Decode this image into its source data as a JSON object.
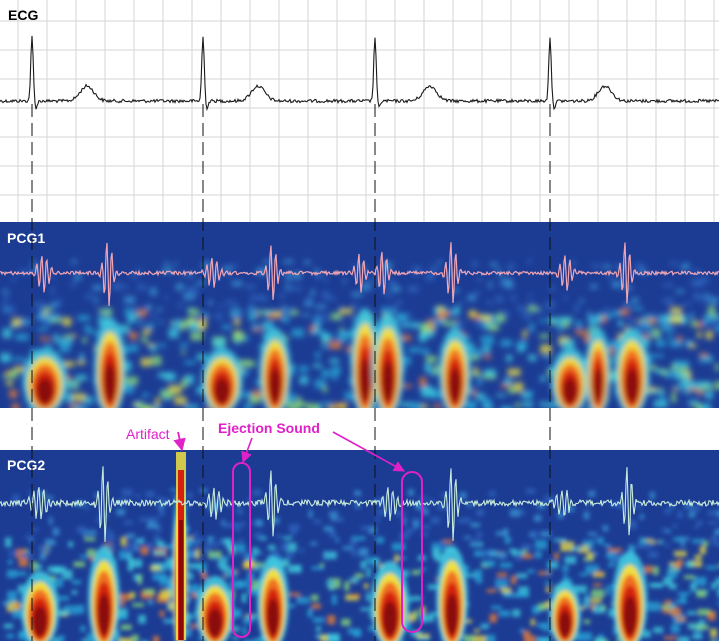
{
  "panels": {
    "ecg": {
      "label": "ECG"
    },
    "pcg1": {
      "label": "PCG1"
    },
    "pcg2": {
      "label": "PCG2"
    }
  },
  "annotations": {
    "artifact": "Artifact",
    "ejection_sound": "Ejection Sound"
  },
  "colors": {
    "ecg_trace": "#1a1a1a",
    "grid": "#d4d4d4",
    "pcg1_waveform": "#f2a6b4",
    "pcg2_waveform": "#c8ecdc",
    "annotation": "#e020c8",
    "spectrogram_background": "#1c3c94"
  }
}
